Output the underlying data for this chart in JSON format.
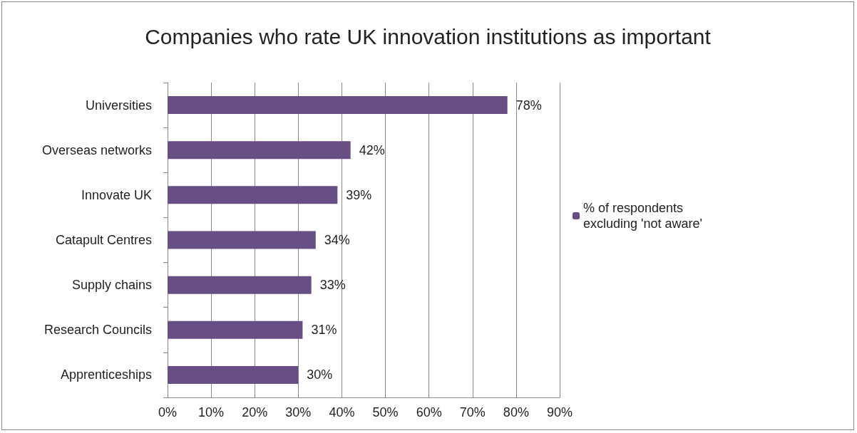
{
  "chart_data": {
    "type": "bar",
    "orientation": "horizontal",
    "title": "Companies who rate UK innovation institutions as important",
    "categories": [
      "Universities",
      "Overseas networks",
      "Innovate UK",
      "Catapult Centres",
      "Supply chains",
      "Research Councils",
      "Apprenticeships"
    ],
    "series": [
      {
        "name": "% of respondents excluding 'not aware'",
        "color": "#674f86",
        "values": [
          78,
          42,
          39,
          34,
          33,
          31,
          30
        ],
        "value_labels": [
          "78%",
          "42%",
          "39%",
          "34%",
          "33%",
          "31%",
          "30%"
        ]
      }
    ],
    "xlim": [
      0,
      90
    ],
    "xticks": [
      {
        "value": 0,
        "label": "0%"
      },
      {
        "value": 10,
        "label": "10%"
      },
      {
        "value": 20,
        "label": "20%"
      },
      {
        "value": 30,
        "label": "30%"
      },
      {
        "value": 40,
        "label": "40%"
      },
      {
        "value": 50,
        "label": "50%"
      },
      {
        "value": 60,
        "label": "60%"
      },
      {
        "value": 70,
        "label": "70%"
      },
      {
        "value": 80,
        "label": "80%"
      },
      {
        "value": 90,
        "label": "90%"
      }
    ],
    "grid": "x",
    "legend": "right"
  }
}
